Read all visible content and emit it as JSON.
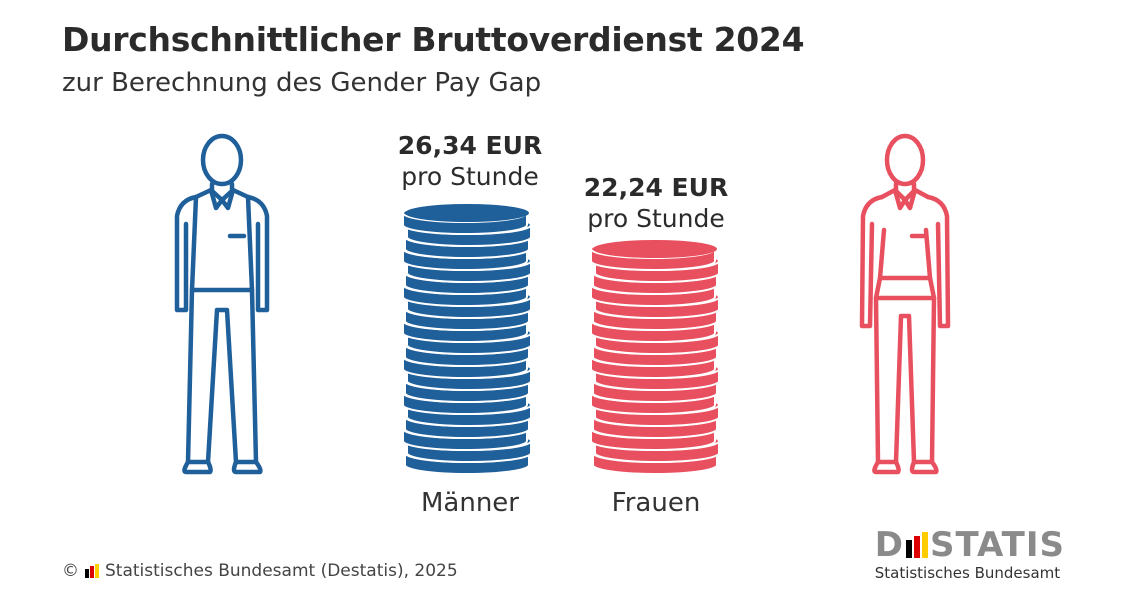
{
  "title": "Durchschnittlicher Bruttoverdienst 2024",
  "subtitle": "zur Berechnung des Gender Pay Gap",
  "colors": {
    "men": "#1f5f9a",
    "women": "#e9505f"
  },
  "icons": {
    "men": "man-figure-icon",
    "women": "woman-figure-icon"
  },
  "chart_data": {
    "type": "bar",
    "style": "coin-stacks",
    "categories": [
      "Männer",
      "Frauen"
    ],
    "values": [
      26.34,
      22.24
    ],
    "value_labels": [
      "26,34 EUR",
      "22,24 EUR"
    ],
    "unit_label": "pro Stunde",
    "title": "Durchschnittlicher Bruttoverdienst 2024",
    "subtitle": "zur Berechnung des Gender Pay Gap"
  },
  "labels": {
    "men": {
      "amount": "26,34 EUR",
      "unit": "pro Stunde",
      "category": "Männer"
    },
    "women": {
      "amount": "22,24 EUR",
      "unit": "pro Stunde",
      "category": "Frauen"
    }
  },
  "footer": {
    "copyright": "©",
    "source": "Statistisches Bundesamt (Destatis), 2025"
  },
  "logo": {
    "word_left": "D",
    "word_right": "STATIS",
    "subtitle": "Statistisches Bundesamt",
    "bar_colors": [
      "#000000",
      "#dd0000",
      "#ffcc00"
    ]
  }
}
